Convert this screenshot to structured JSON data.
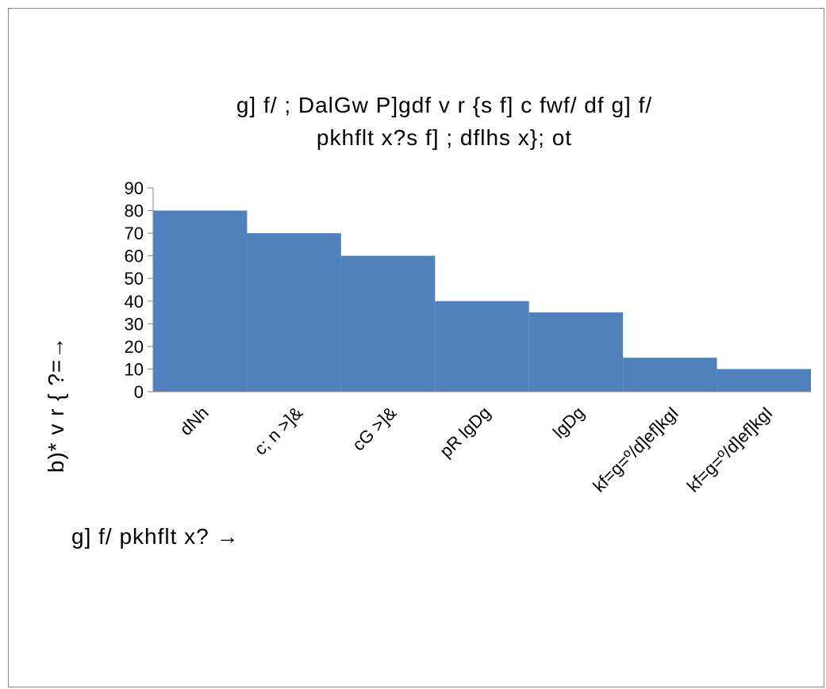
{
  "chart_data": {
    "type": "bar",
    "title": "g] f/  ; DalGw P]gdf  v r {s f] c fwf/ df  g] f/  pkhflt x?s f] ; dflhs  x}; ot",
    "title_lines": [
      "g] f/  ; DalGw P]gdf  v r {s f] c fwf/ df  g] f/",
      "pkhflt x?s f] ; dflhs  x}; ot"
    ],
    "xlabel": "g] f/  pkhflt x? →",
    "ylabel": "b)*  v r { ?=→",
    "categories": [
      "dNh",
      "c; n  >]&",
      "cG  >]&",
      "pR  lgDg",
      "lgDg",
      "kf=g=º/d]ef]kgI",
      "kf=g=º/d]ef]kgI"
    ],
    "values": [
      80,
      70,
      60,
      40,
      35,
      15,
      10
    ],
    "ylim": [
      0,
      90
    ],
    "yticks": [
      "0",
      "10",
      "20",
      "30",
      "40",
      "50",
      "60",
      "70",
      "80",
      "90"
    ],
    "grid": false,
    "legend": "none",
    "bar_color": "#4f81bd",
    "axis_color": "#868686"
  }
}
